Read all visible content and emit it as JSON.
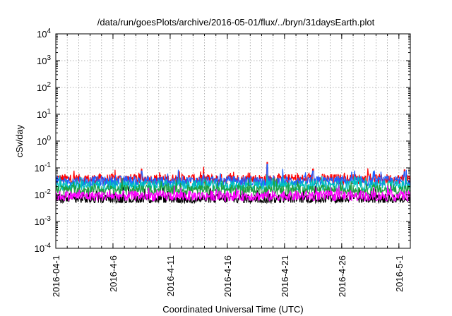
{
  "chart_data": {
    "type": "line",
    "title": "/data/run/goesPlots/archive/2016-05-01/flux/../bryn/31daysEarth.plot",
    "xlabel": "Coordinated Universal Time (UTC)",
    "ylabel": "cSv/day",
    "yscale": "log",
    "ylim": [
      0.0001,
      10000
    ],
    "xlim": [
      "2016-04-01",
      "2016-05-02"
    ],
    "grid": true,
    "y_ticks": [
      {
        "value": 0.0001,
        "base": "10",
        "exp": "-4"
      },
      {
        "value": 0.001,
        "base": "10",
        "exp": "-3"
      },
      {
        "value": 0.01,
        "base": "10",
        "exp": "-2"
      },
      {
        "value": 0.1,
        "base": "10",
        "exp": "-1"
      },
      {
        "value": 1,
        "base": "10",
        "exp": "0"
      },
      {
        "value": 10,
        "base": "10",
        "exp": "1"
      },
      {
        "value": 100,
        "base": "10",
        "exp": "2"
      },
      {
        "value": 1000,
        "base": "10",
        "exp": "3"
      },
      {
        "value": 10000,
        "base": "10",
        "exp": "4"
      }
    ],
    "x_ticks": [
      {
        "date": "2016-04-01",
        "label": "2016-04-1"
      },
      {
        "date": "2016-04-06",
        "label": "2016-4-6"
      },
      {
        "date": "2016-04-11",
        "label": "2016-4-11"
      },
      {
        "date": "2016-04-16",
        "label": "2016-4-16"
      },
      {
        "date": "2016-04-21",
        "label": "2016-4-21"
      },
      {
        "date": "2016-04-26",
        "label": "2016-4-26"
      },
      {
        "date": "2016-05-01",
        "label": "2016-5-1"
      }
    ],
    "series": [
      {
        "color": "#ff0000",
        "baseline": 0.038,
        "range": [
          0.025,
          0.1
        ]
      },
      {
        "color": "#2060ff",
        "baseline": 0.032,
        "range": [
          0.02,
          0.08
        ]
      },
      {
        "color": "#00c0c0",
        "baseline": 0.022,
        "range": [
          0.012,
          0.04
        ]
      },
      {
        "color": "#20a040",
        "baseline": 0.015,
        "range": [
          0.009,
          0.03
        ]
      },
      {
        "color": "#000000",
        "baseline": 0.007,
        "range": [
          0.005,
          0.012
        ]
      },
      {
        "color": "#ff00ff",
        "baseline": 0.009,
        "range": [
          0.004,
          0.03
        ]
      }
    ],
    "peaks": [
      {
        "date": "2016-04-19",
        "value": 0.16
      },
      {
        "date": "2016-04-08",
        "value": 0.09
      },
      {
        "date": "2016-04-23",
        "value": 0.09
      },
      {
        "date": "2016-05-01",
        "value": 0.085
      }
    ]
  }
}
